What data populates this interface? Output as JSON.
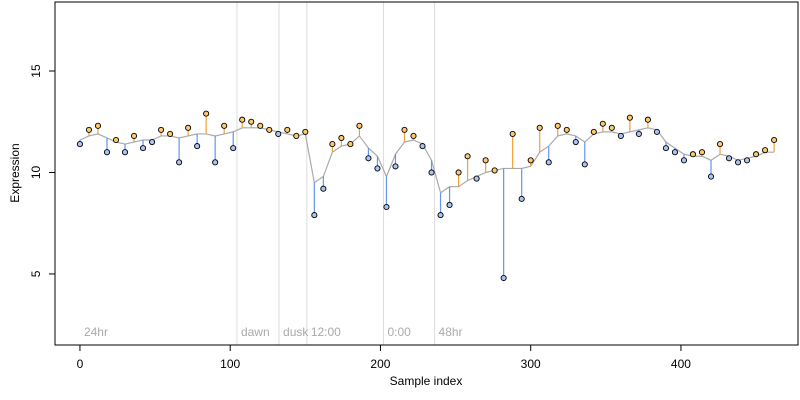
{
  "chart_data": {
    "type": "scatter",
    "xlabel": "Sample index",
    "ylabel": "Expression",
    "xlim": [
      -16.6,
      477.9
    ],
    "ylim": [
      1.5,
      18.4
    ],
    "xticks": [
      0,
      100,
      200,
      300,
      400
    ],
    "yticks": [
      5,
      10,
      15
    ],
    "above_color": "#f0a030",
    "below_color": "#6495ed",
    "fitted_color": "#aaaaaa",
    "above_fill": "#ffc86b",
    "below_fill": "#a9c4f5",
    "vlines": [
      104.5,
      132.5,
      151,
      202,
      236
    ],
    "annotations": [
      {
        "label": "24hr",
        "x": 0
      },
      {
        "label": "dawn",
        "x": 104.5
      },
      {
        "label": "dusk",
        "x": 132.5
      },
      {
        "label": "12:00",
        "x": 151
      },
      {
        "label": "0:00",
        "x": 202
      },
      {
        "label": "48hr",
        "x": 236
      }
    ],
    "x": [
      0,
      6,
      12,
      18,
      24,
      30,
      36,
      42,
      48,
      54,
      60,
      66,
      72,
      78,
      84,
      90,
      96,
      102,
      108,
      114,
      120,
      126,
      132,
      138,
      144,
      150,
      156,
      162,
      168,
      174,
      180,
      186,
      192,
      198,
      204,
      210,
      216,
      222,
      228,
      234,
      240,
      246,
      252,
      258,
      264,
      270,
      276,
      282,
      288,
      294,
      300,
      306,
      312,
      318,
      324,
      330,
      336,
      342,
      348,
      354,
      360,
      366,
      372,
      378,
      384,
      390,
      396,
      402,
      408,
      414,
      420,
      426,
      432,
      438,
      444,
      450,
      456,
      462
    ],
    "values": [
      11.4,
      12.1,
      12.3,
      11.0,
      11.6,
      11.0,
      11.8,
      11.2,
      11.5,
      12.1,
      11.9,
      10.5,
      12.2,
      11.3,
      12.9,
      10.5,
      12.3,
      11.2,
      12.6,
      12.5,
      12.3,
      12.1,
      11.9,
      12.1,
      11.8,
      12.0,
      7.9,
      9.2,
      11.4,
      11.7,
      11.4,
      12.3,
      10.7,
      10.2,
      8.3,
      10.3,
      12.1,
      11.8,
      11.3,
      10.0,
      7.9,
      8.4,
      10.0,
      10.8,
      9.7,
      10.6,
      10.1,
      4.8,
      11.9,
      8.7,
      10.6,
      12.2,
      10.5,
      12.3,
      12.1,
      11.5,
      10.4,
      12.0,
      12.4,
      12.2,
      11.8,
      12.7,
      11.9,
      12.6,
      12.0,
      11.2,
      11.0,
      10.6,
      10.9,
      11.0,
      9.8,
      11.4,
      10.7,
      10.5,
      10.6,
      10.9,
      11.1,
      11.6
    ],
    "fitted": [
      11.6,
      11.8,
      11.9,
      11.7,
      11.5,
      11.4,
      11.5,
      11.6,
      11.6,
      11.8,
      11.8,
      11.7,
      11.8,
      11.9,
      11.9,
      11.8,
      11.9,
      12.0,
      12.2,
      12.2,
      12.2,
      12.1,
      12.0,
      11.9,
      11.8,
      11.9,
      9.5,
      9.8,
      11.0,
      11.3,
      11.4,
      11.8,
      11.2,
      10.8,
      9.8,
      10.9,
      11.5,
      11.6,
      11.4,
      10.6,
      9.0,
      9.3,
      9.3,
      9.6,
      9.8,
      10.0,
      10.1,
      10.2,
      10.2,
      10.2,
      10.3,
      11.0,
      11.3,
      11.8,
      11.9,
      11.8,
      11.5,
      11.9,
      12.0,
      12.0,
      11.9,
      12.0,
      12.1,
      12.2,
      12.1,
      11.5,
      11.2,
      10.9,
      10.8,
      10.8,
      10.6,
      10.9,
      10.8,
      10.6,
      10.7,
      10.8,
      11.0,
      11.0
    ]
  }
}
